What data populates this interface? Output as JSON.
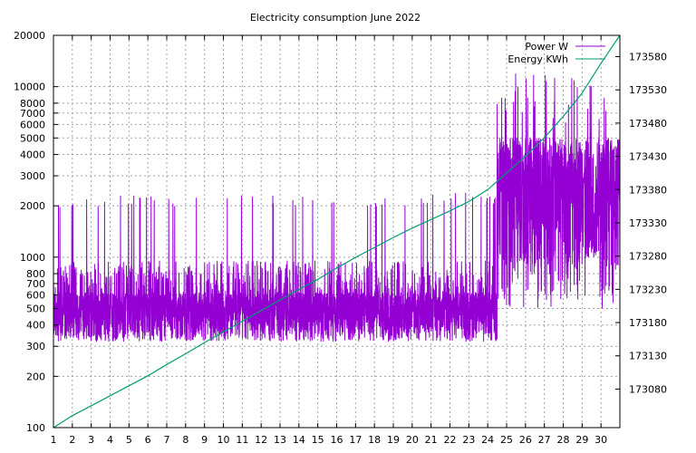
{
  "chart_data": {
    "type": "line",
    "title": "Electricity consumption June 2022",
    "xlabel": "",
    "ylabel": "",
    "y2label": "",
    "x_ticks": [
      "1",
      "2",
      "3",
      "4",
      "5",
      "6",
      "7",
      "8",
      "9",
      "10",
      "11",
      "12",
      "13",
      "14",
      "15",
      "16",
      "17",
      "18",
      "19",
      "20",
      "21",
      "22",
      "23",
      "24",
      "25",
      "26",
      "27",
      "28",
      "29",
      "30"
    ],
    "xlim": [
      1,
      31
    ],
    "y_scale": "log",
    "ylim": [
      100,
      20000
    ],
    "y_ticks": [
      100,
      200,
      300,
      400,
      500,
      600,
      700,
      800,
      1000,
      2000,
      3000,
      4000,
      5000,
      6000,
      7000,
      8000,
      10000,
      20000
    ],
    "y2lim": [
      173022,
      173612
    ],
    "y2_ticks": [
      173080,
      173130,
      173180,
      173230,
      173280,
      173330,
      173380,
      173430,
      173480,
      173530,
      173580
    ],
    "grid": true,
    "legend_position": "top-right",
    "series": [
      {
        "name": "Power W",
        "axis": "y",
        "color": "#9400d3",
        "pattern": {
          "baseline_low": 320,
          "baseline_high": 950,
          "spike_level": 2300,
          "late_high_start_day": 24.5,
          "late_low": 900,
          "late_high": 5000,
          "peak_max": 12000
        }
      },
      {
        "name": "Energy KWh",
        "axis": "y2",
        "color": "#009e73",
        "points": [
          [
            1,
            173022
          ],
          [
            2,
            173040
          ],
          [
            3,
            173055
          ],
          [
            4,
            173070
          ],
          [
            5,
            173085
          ],
          [
            6,
            173100
          ],
          [
            7,
            173117
          ],
          [
            8,
            173133
          ],
          [
            9,
            173150
          ],
          [
            10,
            173166
          ],
          [
            11,
            173182
          ],
          [
            12,
            173198
          ],
          [
            13,
            173214
          ],
          [
            14,
            173230
          ],
          [
            15,
            173245
          ],
          [
            16,
            173262
          ],
          [
            17,
            173278
          ],
          [
            18,
            173293
          ],
          [
            19,
            173308
          ],
          [
            20,
            173322
          ],
          [
            21,
            173335
          ],
          [
            22,
            173348
          ],
          [
            23,
            173362
          ],
          [
            24,
            173380
          ],
          [
            25,
            173405
          ],
          [
            26,
            173430
          ],
          [
            27,
            173458
          ],
          [
            28,
            173490
          ],
          [
            29,
            173525
          ],
          [
            30,
            173570
          ],
          [
            31,
            173612
          ]
        ]
      }
    ]
  }
}
